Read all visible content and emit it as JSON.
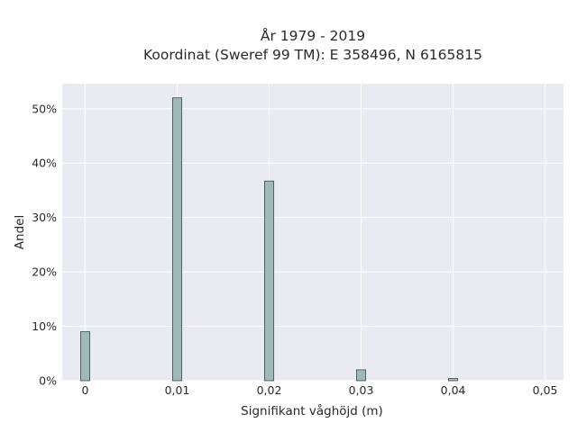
{
  "chart_data": {
    "type": "bar",
    "title_lines": [
      "År 1979 - 2019",
      "Koordinat (Sweref 99 TM): E 358496, N 6165815"
    ],
    "xlabel": "Signifikant våghöjd (m)",
    "ylabel": "Andel",
    "x": [
      0.0,
      0.01,
      0.02,
      0.03,
      0.04
    ],
    "values": [
      9.0,
      52.0,
      36.7,
      2.0,
      0.4
    ],
    "xlim": [
      -0.0025,
      0.052
    ],
    "ylim": [
      0,
      54.6
    ],
    "bin_width": 0.001,
    "x_ticks": [
      0,
      0.01,
      0.02,
      0.03,
      0.04,
      0.05
    ],
    "x_tick_labels": [
      "0",
      "0,01",
      "0,02",
      "0,03",
      "0,04",
      "0,05"
    ],
    "y_ticks": [
      0,
      10,
      20,
      30,
      40,
      50
    ],
    "y_tick_labels": [
      "0%",
      "10%",
      "20%",
      "30%",
      "40%",
      "50%"
    ],
    "grid": true,
    "legend": "none",
    "bar_color": "#9fb9b9",
    "bar_edge_color": "#3a4a4a",
    "plot_background": "#eaeaf2",
    "grid_color": "#ffffff"
  }
}
